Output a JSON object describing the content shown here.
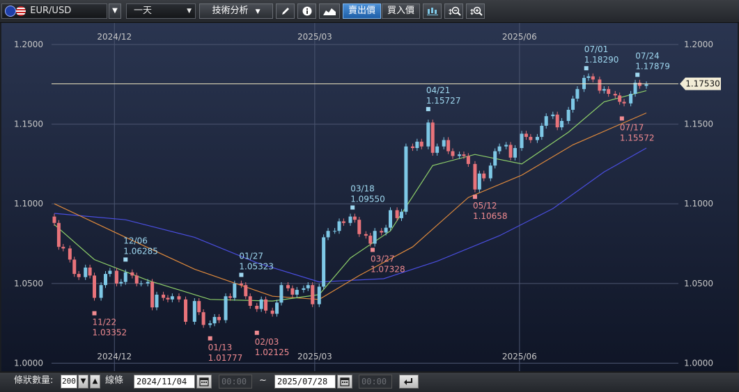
{
  "toolbar": {
    "symbol": "EUR/USD",
    "interval": "一天",
    "analysis": "技術分析",
    "sell_price": "賣出價",
    "buy_price": "買入價"
  },
  "bottom": {
    "count_label": "條狀數量:",
    "count_value": "200",
    "bars_label": "線條",
    "from_date": "2024/11/04",
    "from_time": "00:00",
    "tilde": "~",
    "to_date": "2025/07/28",
    "to_time": "00:00"
  },
  "chart_data": {
    "type": "candlestick",
    "symbol": "EUR/USD",
    "x_range": [
      "2024-11-04",
      "2025-07-28"
    ],
    "ylim": [
      0.995,
      1.2135
    ],
    "yticks": [
      "1.2000",
      "1.1500",
      "1.1000",
      "1.0500",
      "1.0000"
    ],
    "xticks": [
      {
        "label": "2024/12",
        "date": "2024-12-01"
      },
      {
        "label": "2025/03",
        "date": "2025-03-01"
      },
      {
        "label": "2025/06",
        "date": "2025-06-01"
      }
    ],
    "current_price": "1.17530",
    "grid": true,
    "colors": {
      "up": "#7ec8e6",
      "down": "#e8737a",
      "ma_short": "#8fd06a",
      "ma_mid": "#e08a3c",
      "ma_long": "#4a4ee0",
      "price_line": "#f0e6c0",
      "high_label": "#9fd8f0",
      "low_label": "#f08a90"
    },
    "highs": [
      {
        "date": "12/06",
        "value": "1.06285"
      },
      {
        "date": "01/27",
        "value": "1.05323"
      },
      {
        "date": "03/18",
        "value": "1.09550"
      },
      {
        "date": "04/21",
        "value": "1.15727"
      },
      {
        "date": "07/01",
        "value": "1.18290"
      },
      {
        "date": "07/24",
        "value": "1.17879"
      }
    ],
    "lows": [
      {
        "date": "11/22",
        "value": "1.03352"
      },
      {
        "date": "01/13",
        "value": "1.01777"
      },
      {
        "date": "02/03",
        "value": "1.02125"
      },
      {
        "date": "03/27",
        "value": "1.07328"
      },
      {
        "date": "05/12",
        "value": "1.10658"
      },
      {
        "date": "07/17",
        "value": "1.15572"
      }
    ],
    "closes": [
      {
        "date": "2024-11-04",
        "c": 1.088
      },
      {
        "date": "2024-11-06",
        "c": 1.073
      },
      {
        "date": "2024-11-08",
        "c": 1.072
      },
      {
        "date": "2024-11-11",
        "c": 1.065
      },
      {
        "date": "2024-11-13",
        "c": 1.056
      },
      {
        "date": "2024-11-15",
        "c": 1.054
      },
      {
        "date": "2024-11-18",
        "c": 1.06
      },
      {
        "date": "2024-11-20",
        "c": 1.055
      },
      {
        "date": "2024-11-22",
        "c": 1.041
      },
      {
        "date": "2024-11-25",
        "c": 1.049
      },
      {
        "date": "2024-11-27",
        "c": 1.056
      },
      {
        "date": "2024-11-29",
        "c": 1.058
      },
      {
        "date": "2024-12-02",
        "c": 1.05
      },
      {
        "date": "2024-12-04",
        "c": 1.051
      },
      {
        "date": "2024-12-06",
        "c": 1.057
      },
      {
        "date": "2024-12-09",
        "c": 1.055
      },
      {
        "date": "2024-12-11",
        "c": 1.05
      },
      {
        "date": "2024-12-13",
        "c": 1.05
      },
      {
        "date": "2024-12-16",
        "c": 1.051
      },
      {
        "date": "2024-12-18",
        "c": 1.035
      },
      {
        "date": "2024-12-20",
        "c": 1.043
      },
      {
        "date": "2024-12-23",
        "c": 1.041
      },
      {
        "date": "2024-12-25",
        "c": 1.04
      },
      {
        "date": "2024-12-27",
        "c": 1.042
      },
      {
        "date": "2024-12-30",
        "c": 1.04
      },
      {
        "date": "2025-01-02",
        "c": 1.026
      },
      {
        "date": "2025-01-06",
        "c": 1.039
      },
      {
        "date": "2025-01-08",
        "c": 1.032
      },
      {
        "date": "2025-01-10",
        "c": 1.024
      },
      {
        "date": "2025-01-13",
        "c": 1.025
      },
      {
        "date": "2025-01-15",
        "c": 1.029
      },
      {
        "date": "2025-01-17",
        "c": 1.027
      },
      {
        "date": "2025-01-20",
        "c": 1.042
      },
      {
        "date": "2025-01-22",
        "c": 1.041
      },
      {
        "date": "2025-01-24",
        "c": 1.05
      },
      {
        "date": "2025-01-27",
        "c": 1.049
      },
      {
        "date": "2025-01-29",
        "c": 1.042
      },
      {
        "date": "2025-01-31",
        "c": 1.036
      },
      {
        "date": "2025-02-03",
        "c": 1.034
      },
      {
        "date": "2025-02-05",
        "c": 1.04
      },
      {
        "date": "2025-02-07",
        "c": 1.033
      },
      {
        "date": "2025-02-10",
        "c": 1.031
      },
      {
        "date": "2025-02-12",
        "c": 1.038
      },
      {
        "date": "2025-02-14",
        "c": 1.049
      },
      {
        "date": "2025-02-17",
        "c": 1.047
      },
      {
        "date": "2025-02-19",
        "c": 1.043
      },
      {
        "date": "2025-02-21",
        "c": 1.046
      },
      {
        "date": "2025-02-24",
        "c": 1.047
      },
      {
        "date": "2025-02-26",
        "c": 1.049
      },
      {
        "date": "2025-02-28",
        "c": 1.037
      },
      {
        "date": "2025-03-03",
        "c": 1.048
      },
      {
        "date": "2025-03-05",
        "c": 1.079
      },
      {
        "date": "2025-03-07",
        "c": 1.083
      },
      {
        "date": "2025-03-10",
        "c": 1.083
      },
      {
        "date": "2025-03-12",
        "c": 1.089
      },
      {
        "date": "2025-03-14",
        "c": 1.088
      },
      {
        "date": "2025-03-17",
        "c": 1.092
      },
      {
        "date": "2025-03-19",
        "c": 1.09
      },
      {
        "date": "2025-03-21",
        "c": 1.081
      },
      {
        "date": "2025-03-24",
        "c": 1.08
      },
      {
        "date": "2025-03-26",
        "c": 1.075
      },
      {
        "date": "2025-03-28",
        "c": 1.083
      },
      {
        "date": "2025-03-31",
        "c": 1.082
      },
      {
        "date": "2025-04-02",
        "c": 1.085
      },
      {
        "date": "2025-04-04",
        "c": 1.096
      },
      {
        "date": "2025-04-07",
        "c": 1.091
      },
      {
        "date": "2025-04-09",
        "c": 1.095
      },
      {
        "date": "2025-04-11",
        "c": 1.136
      },
      {
        "date": "2025-04-14",
        "c": 1.135
      },
      {
        "date": "2025-04-16",
        "c": 1.139
      },
      {
        "date": "2025-04-18",
        "c": 1.136
      },
      {
        "date": "2025-04-21",
        "c": 1.151
      },
      {
        "date": "2025-04-23",
        "c": 1.132
      },
      {
        "date": "2025-04-25",
        "c": 1.136
      },
      {
        "date": "2025-04-28",
        "c": 1.14
      },
      {
        "date": "2025-04-30",
        "c": 1.133
      },
      {
        "date": "2025-05-02",
        "c": 1.13
      },
      {
        "date": "2025-05-05",
        "c": 1.131
      },
      {
        "date": "2025-05-07",
        "c": 1.13
      },
      {
        "date": "2025-05-09",
        "c": 1.125
      },
      {
        "date": "2025-05-12",
        "c": 1.109
      },
      {
        "date": "2025-05-14",
        "c": 1.119
      },
      {
        "date": "2025-05-16",
        "c": 1.116
      },
      {
        "date": "2025-05-19",
        "c": 1.124
      },
      {
        "date": "2025-05-21",
        "c": 1.133
      },
      {
        "date": "2025-05-23",
        "c": 1.136
      },
      {
        "date": "2025-05-26",
        "c": 1.137
      },
      {
        "date": "2025-05-28",
        "c": 1.129
      },
      {
        "date": "2025-05-30",
        "c": 1.135
      },
      {
        "date": "2025-06-02",
        "c": 1.144
      },
      {
        "date": "2025-06-04",
        "c": 1.142
      },
      {
        "date": "2025-06-06",
        "c": 1.14
      },
      {
        "date": "2025-06-09",
        "c": 1.142
      },
      {
        "date": "2025-06-11",
        "c": 1.149
      },
      {
        "date": "2025-06-13",
        "c": 1.155
      },
      {
        "date": "2025-06-16",
        "c": 1.156
      },
      {
        "date": "2025-06-18",
        "c": 1.148
      },
      {
        "date": "2025-06-20",
        "c": 1.152
      },
      {
        "date": "2025-06-23",
        "c": 1.159
      },
      {
        "date": "2025-06-25",
        "c": 1.166
      },
      {
        "date": "2025-06-27",
        "c": 1.172
      },
      {
        "date": "2025-06-30",
        "c": 1.179
      },
      {
        "date": "2025-07-02",
        "c": 1.18
      },
      {
        "date": "2025-07-04",
        "c": 1.178
      },
      {
        "date": "2025-07-07",
        "c": 1.171
      },
      {
        "date": "2025-07-09",
        "c": 1.172
      },
      {
        "date": "2025-07-11",
        "c": 1.169
      },
      {
        "date": "2025-07-14",
        "c": 1.168
      },
      {
        "date": "2025-07-16",
        "c": 1.164
      },
      {
        "date": "2025-07-18",
        "c": 1.163
      },
      {
        "date": "2025-07-21",
        "c": 1.169
      },
      {
        "date": "2025-07-23",
        "c": 1.176
      },
      {
        "date": "2025-07-25",
        "c": 1.174
      },
      {
        "date": "2025-07-28",
        "c": 1.175
      }
    ],
    "ma_short": [
      {
        "date": "2024-11-04",
        "v": 1.087
      },
      {
        "date": "2024-11-22",
        "v": 1.065
      },
      {
        "date": "2024-12-16",
        "v": 1.052
      },
      {
        "date": "2025-01-13",
        "v": 1.04
      },
      {
        "date": "2025-02-10",
        "v": 1.039
      },
      {
        "date": "2025-03-03",
        "v": 1.043
      },
      {
        "date": "2025-03-17",
        "v": 1.066
      },
      {
        "date": "2025-04-04",
        "v": 1.083
      },
      {
        "date": "2025-04-23",
        "v": 1.124
      },
      {
        "date": "2025-05-12",
        "v": 1.131
      },
      {
        "date": "2025-06-02",
        "v": 1.125
      },
      {
        "date": "2025-06-23",
        "v": 1.145
      },
      {
        "date": "2025-07-09",
        "v": 1.164
      },
      {
        "date": "2025-07-28",
        "v": 1.171
      }
    ],
    "ma_mid": [
      {
        "date": "2024-11-04",
        "v": 1.1
      },
      {
        "date": "2024-12-06",
        "v": 1.079
      },
      {
        "date": "2025-01-06",
        "v": 1.059
      },
      {
        "date": "2025-02-10",
        "v": 1.042
      },
      {
        "date": "2025-03-03",
        "v": 1.04
      },
      {
        "date": "2025-03-21",
        "v": 1.055
      },
      {
        "date": "2025-04-14",
        "v": 1.073
      },
      {
        "date": "2025-05-09",
        "v": 1.104
      },
      {
        "date": "2025-06-02",
        "v": 1.118
      },
      {
        "date": "2025-06-25",
        "v": 1.137
      },
      {
        "date": "2025-07-28",
        "v": 1.157
      }
    ],
    "ma_long": [
      {
        "date": "2024-11-04",
        "v": 1.094
      },
      {
        "date": "2024-12-06",
        "v": 1.09
      },
      {
        "date": "2025-01-06",
        "v": 1.079
      },
      {
        "date": "2025-02-03",
        "v": 1.063
      },
      {
        "date": "2025-03-03",
        "v": 1.051
      },
      {
        "date": "2025-04-01",
        "v": 1.053
      },
      {
        "date": "2025-04-25",
        "v": 1.064
      },
      {
        "date": "2025-05-23",
        "v": 1.08
      },
      {
        "date": "2025-06-16",
        "v": 1.097
      },
      {
        "date": "2025-07-09",
        "v": 1.12
      },
      {
        "date": "2025-07-28",
        "v": 1.135
      }
    ]
  }
}
